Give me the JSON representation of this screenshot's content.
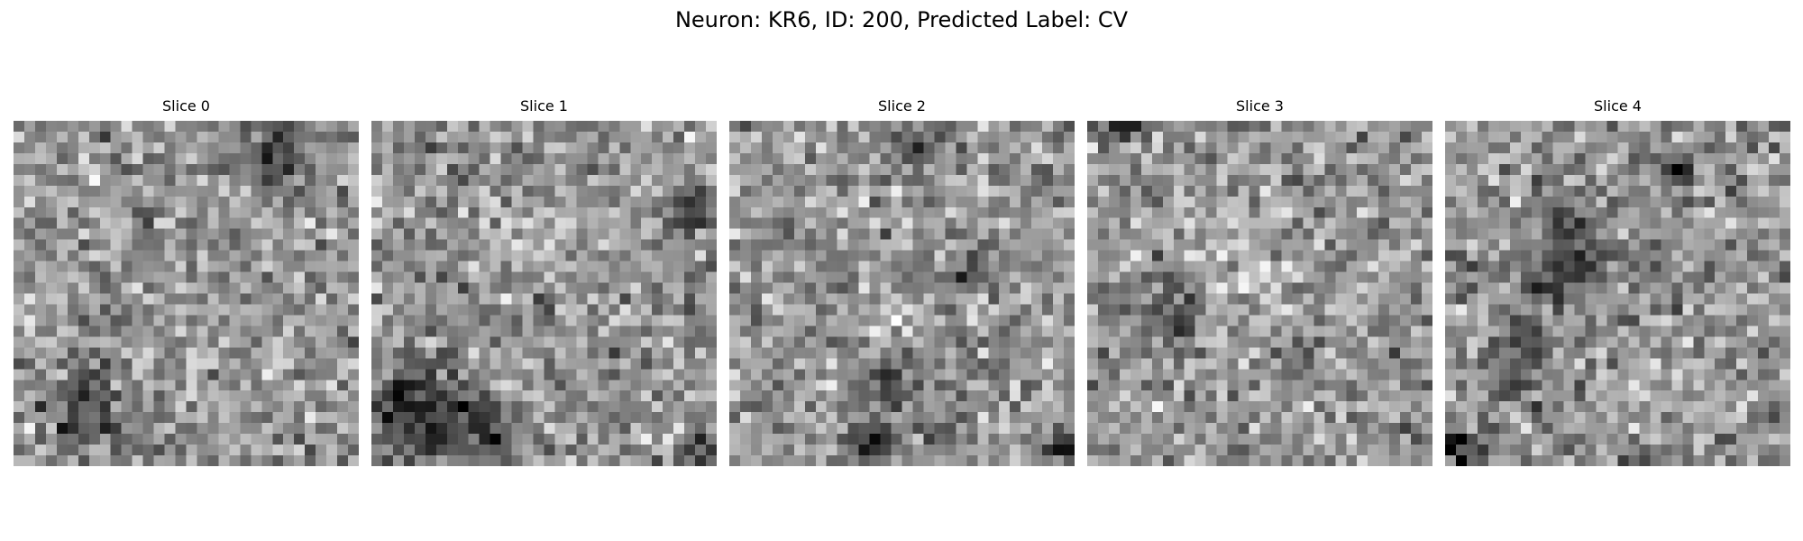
{
  "figure": {
    "title": "Neuron: KR6, ID: 200, Predicted Label: CV"
  },
  "slices": [
    {
      "title": "Slice 0",
      "grid": 32,
      "seed": 11,
      "dark_spots": [
        {
          "r": 3,
          "c": 24,
          "rad": 2.2,
          "str": 110
        },
        {
          "r": 26,
          "c": 6,
          "rad": 2.5,
          "str": 70
        },
        {
          "r": 30,
          "c": 12,
          "rad": 1.5,
          "str": 60
        }
      ],
      "bright_spots": [
        {
          "r": 10,
          "c": 9,
          "rad": 1.2,
          "str": 40
        }
      ]
    },
    {
      "title": "Slice 1",
      "grid": 32,
      "seed": 23,
      "dark_spots": [
        {
          "r": 26,
          "c": 4,
          "rad": 3.0,
          "str": 100
        },
        {
          "r": 28,
          "c": 10,
          "rad": 2.0,
          "str": 80
        },
        {
          "r": 8,
          "c": 29,
          "rad": 1.5,
          "str": 90
        },
        {
          "r": 17,
          "c": 15,
          "rad": 1.0,
          "str": 100
        },
        {
          "r": 30,
          "c": 30,
          "rad": 1.0,
          "str": 110
        }
      ],
      "bright_spots": [
        {
          "r": 10,
          "c": 14,
          "rad": 2.0,
          "str": 40
        }
      ]
    },
    {
      "title": "Slice 2",
      "grid": 32,
      "seed": 37,
      "dark_spots": [
        {
          "r": 2,
          "c": 17,
          "rad": 1.5,
          "str": 80
        },
        {
          "r": 24,
          "c": 14,
          "rad": 1.5,
          "str": 90
        },
        {
          "r": 29,
          "c": 13,
          "rad": 1.2,
          "str": 110
        },
        {
          "r": 13,
          "c": 22,
          "rad": 1.0,
          "str": 80
        },
        {
          "r": 30,
          "c": 31,
          "rad": 1.0,
          "str": 120
        }
      ],
      "bright_spots": [
        {
          "r": 18,
          "c": 14,
          "rad": 2.0,
          "str": 35
        }
      ]
    },
    {
      "title": "Slice 3",
      "grid": 32,
      "seed": 53,
      "dark_spots": [
        {
          "r": 17,
          "c": 8,
          "rad": 2.0,
          "str": 80
        },
        {
          "r": 0,
          "c": 3,
          "rad": 1.0,
          "str": 120
        },
        {
          "r": 15,
          "c": 2,
          "rad": 1.2,
          "str": 60
        }
      ],
      "bright_spots": [
        {
          "r": 12,
          "c": 14,
          "rad": 4.0,
          "str": 40
        },
        {
          "r": 27,
          "c": 20,
          "rad": 3.0,
          "str": 30
        }
      ]
    },
    {
      "title": "Slice 4",
      "grid": 32,
      "seed": 71,
      "dark_spots": [
        {
          "r": 12,
          "c": 11,
          "rad": 3.5,
          "str": 70
        },
        {
          "r": 21,
          "c": 7,
          "rad": 2.5,
          "str": 70
        },
        {
          "r": 30,
          "c": 1,
          "rad": 1.5,
          "str": 120
        },
        {
          "r": 4,
          "c": 21,
          "rad": 1.2,
          "str": 90
        }
      ],
      "bright_spots": [
        {
          "r": 24,
          "c": 18,
          "rad": 2.0,
          "str": 35
        }
      ]
    }
  ]
}
